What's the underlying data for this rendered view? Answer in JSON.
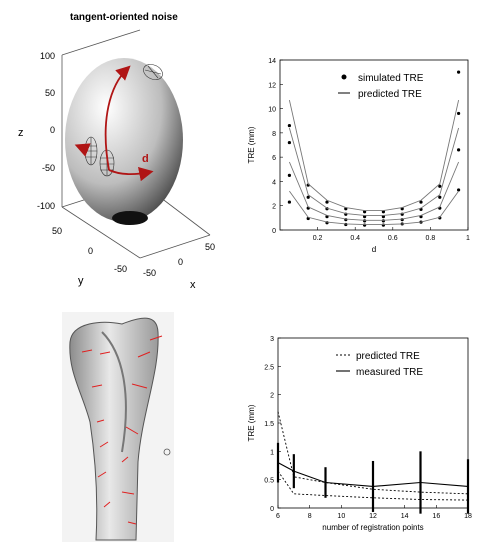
{
  "figure": {
    "panel_a": {
      "title": "tangent-oriented noise",
      "z_label": "z",
      "y_label": "y",
      "x_label": "x",
      "d_label": "d",
      "z_ticks": [
        "100",
        "50",
        "0",
        "-50",
        "-100"
      ],
      "y_ticks": [
        "50",
        "0",
        "-50"
      ],
      "x_ticks": [
        "-50",
        "0",
        "50"
      ],
      "colors": {
        "arrow": "#b01515",
        "surface_light": "#ffffff",
        "surface_dark": "#333333"
      }
    },
    "panel_c": {
      "description_icon": "bone-surface-with-noise-vectors",
      "vector_color": "#e02020"
    }
  },
  "chart_data": [
    {
      "type": "line",
      "id": "simulated-vs-predicted",
      "xlabel": "d",
      "ylabel": "TRE (mm)",
      "xlim": [
        0,
        1
      ],
      "ylim": [
        0,
        14
      ],
      "xticks": [
        0.2,
        0.4,
        0.6,
        0.8,
        1
      ],
      "xtick_labels": [
        "0.2",
        "0.4",
        "0.6",
        "0.8",
        "1"
      ],
      "yticks": [
        0,
        2,
        4,
        6,
        8,
        10,
        12,
        14
      ],
      "ytick_labels": [
        "0",
        "2",
        "4",
        "6",
        "8",
        "10",
        "12",
        "14"
      ],
      "legend": [
        "simulated TRE",
        "predicted TRE"
      ],
      "legend_position": "top-right",
      "x": [
        0.05,
        0.15,
        0.25,
        0.35,
        0.45,
        0.55,
        0.65,
        0.75,
        0.85,
        0.95
      ],
      "series": [
        {
          "name": "simulated TRE",
          "style": "dots",
          "group": 1,
          "values": [
            2.3,
            0.95,
            0.6,
            0.45,
            0.4,
            0.4,
            0.5,
            0.65,
            1.0,
            3.3
          ]
        },
        {
          "name": "simulated TRE",
          "style": "dots",
          "group": 2,
          "values": [
            4.5,
            1.8,
            1.1,
            0.85,
            0.75,
            0.75,
            0.85,
            1.1,
            1.8,
            6.6
          ]
        },
        {
          "name": "simulated TRE",
          "style": "dots",
          "group": 3,
          "values": [
            7.2,
            2.7,
            1.75,
            1.3,
            1.1,
            1.1,
            1.3,
            1.7,
            2.7,
            9.6
          ]
        },
        {
          "name": "simulated TRE",
          "style": "dots",
          "group": 4,
          "values": [
            8.6,
            3.7,
            2.3,
            1.75,
            1.5,
            1.5,
            1.75,
            2.3,
            3.6,
            13.0
          ]
        },
        {
          "name": "predicted TRE",
          "style": "line",
          "group": 1,
          "values": [
            3.2,
            1.05,
            0.65,
            0.5,
            0.45,
            0.45,
            0.5,
            0.65,
            1.05,
            3.2
          ]
        },
        {
          "name": "predicted TRE",
          "style": "line",
          "group": 2,
          "values": [
            5.6,
            1.9,
            1.2,
            0.9,
            0.8,
            0.8,
            0.9,
            1.2,
            1.9,
            5.6
          ]
        },
        {
          "name": "predicted TRE",
          "style": "line",
          "group": 3,
          "values": [
            8.4,
            2.9,
            1.8,
            1.35,
            1.2,
            1.2,
            1.35,
            1.8,
            2.9,
            8.4
          ]
        },
        {
          "name": "predicted TRE",
          "style": "line",
          "group": 4,
          "values": [
            10.7,
            3.8,
            2.45,
            1.85,
            1.6,
            1.6,
            1.85,
            2.45,
            3.8,
            10.7
          ]
        }
      ],
      "grid": false
    },
    {
      "type": "line",
      "id": "predicted-vs-measured",
      "xlabel": "number of registration points",
      "ylabel": "TRE (mm)",
      "xlim": [
        6,
        18
      ],
      "ylim": [
        0,
        3
      ],
      "xticks": [
        6,
        8,
        10,
        12,
        14,
        16,
        18
      ],
      "xtick_labels": [
        "6",
        "8",
        "10",
        "12",
        "14",
        "16",
        "18"
      ],
      "yticks": [
        0,
        0.5,
        1,
        1.5,
        2,
        2.5,
        3
      ],
      "ytick_labels": [
        "0",
        "0.5",
        "1",
        "1.5",
        "2",
        "2.5",
        "3"
      ],
      "legend": [
        "predicted TRE",
        "measured TRE"
      ],
      "legend_position": "top-right",
      "series": [
        {
          "name": "predicted TRE",
          "style": "dotted",
          "x": [
            6,
            7,
            9,
            12,
            15,
            18
          ],
          "values": [
            1.7,
            0.55,
            0.45,
            0.33,
            0.28,
            0.25
          ]
        },
        {
          "name": "predicted TRE",
          "style": "dotted",
          "x": [
            6,
            7,
            9,
            12,
            15,
            18
          ],
          "values": [
            0.65,
            0.25,
            0.22,
            0.18,
            0.15,
            0.14
          ]
        },
        {
          "name": "measured TRE",
          "style": "solid",
          "x": [
            6,
            7,
            9,
            12,
            15,
            18
          ],
          "values": [
            0.8,
            0.65,
            0.45,
            0.38,
            0.45,
            0.38
          ],
          "error": [
            0.35,
            0.3,
            0.27,
            0.45,
            0.55,
            0.48
          ]
        }
      ],
      "grid": false
    }
  ]
}
